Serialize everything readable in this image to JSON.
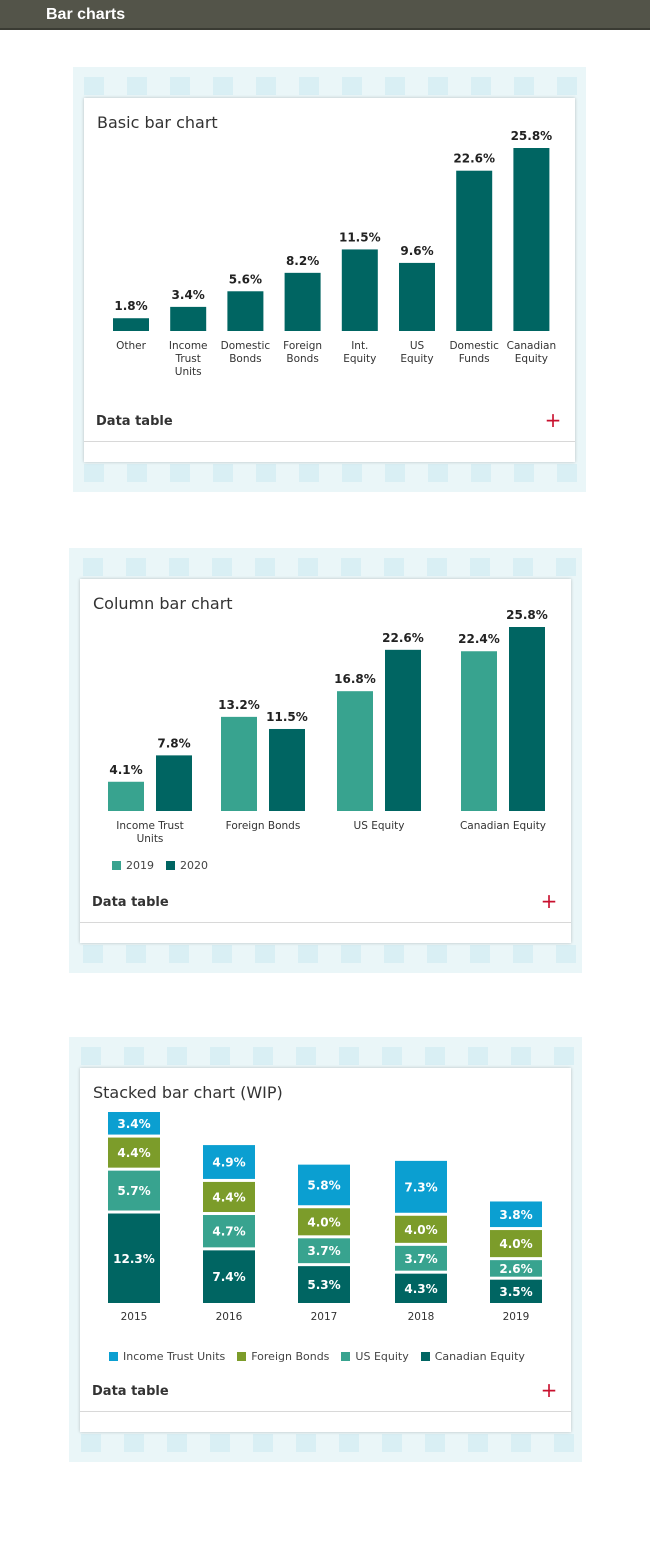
{
  "header": {
    "title": "Bar charts"
  },
  "colors": {
    "dark_teal": "#006562",
    "light_teal": "#38a38f",
    "blue": "#0b9fd1",
    "green": "#7c9c2a",
    "plus_red": "#c8102e"
  },
  "data_table_label": "Data table",
  "plus_icon": "+",
  "chart_data": [
    {
      "type": "bar",
      "title": "Basic bar chart",
      "categories": [
        [
          "Other"
        ],
        [
          "Income",
          "Trust",
          "Units"
        ],
        [
          "Domestic",
          "Bonds"
        ],
        [
          "Foreign",
          "Bonds"
        ],
        [
          "Int.",
          "Equity"
        ],
        [
          "US",
          "Equity"
        ],
        [
          "Domestic",
          "Funds"
        ],
        [
          "Canadian",
          "Equity"
        ]
      ],
      "values": [
        1.8,
        3.4,
        5.6,
        8.2,
        11.5,
        9.6,
        22.6,
        25.8
      ],
      "value_labels": [
        "1.8%",
        "3.4%",
        "5.6%",
        "8.2%",
        "11.5%",
        "9.6%",
        "22.6%",
        "25.8%"
      ],
      "ylim": [
        0,
        25.8
      ]
    },
    {
      "type": "bar",
      "title": "Column bar chart",
      "categories": [
        [
          "Income Trust",
          "Units"
        ],
        [
          "Foreign Bonds"
        ],
        [
          "US Equity"
        ],
        [
          "Canadian Equity"
        ]
      ],
      "series": [
        {
          "name": "2019",
          "color": "#38a38f",
          "values": [
            4.1,
            13.2,
            16.8,
            22.4
          ],
          "value_labels": [
            "4.1%",
            "13.2%",
            "16.8%",
            "22.4%"
          ]
        },
        {
          "name": "2020",
          "color": "#006562",
          "values": [
            7.8,
            11.5,
            22.6,
            25.8
          ],
          "value_labels": [
            "7.8%",
            "11.5%",
            "22.6%",
            "25.8%"
          ]
        }
      ],
      "legend": "bottom-left",
      "ylim": [
        0,
        25.8
      ]
    },
    {
      "type": "bar",
      "title": "Stacked bar chart (WIP)",
      "categories": [
        "2015",
        "2016",
        "2017",
        "2018",
        "2019"
      ],
      "series": [
        {
          "name": "Canadian Equity",
          "color": "#006562",
          "values": [
            12.3,
            7.4,
            5.3,
            4.3,
            3.5
          ],
          "value_labels": [
            "12.3%",
            "7.4%",
            "5.3%",
            "4.3%",
            "3.5%"
          ]
        },
        {
          "name": "US Equity",
          "color": "#38a38f",
          "values": [
            5.7,
            4.7,
            3.7,
            3.7,
            2.6
          ],
          "value_labels": [
            "5.7%",
            "4.7%",
            "3.7%",
            "3.7%",
            "2.6%"
          ]
        },
        {
          "name": "Foreign Bonds",
          "color": "#7c9c2a",
          "values": [
            4.4,
            4.4,
            4.0,
            4.0,
            4.0
          ],
          "value_labels": [
            "4.4%",
            "4.4%",
            "4.0%",
            "4.0%",
            "4.0%"
          ]
        },
        {
          "name": "Income Trust Units",
          "color": "#0b9fd1",
          "values": [
            3.4,
            4.9,
            5.8,
            7.3,
            3.8
          ],
          "value_labels": [
            "3.4%",
            "4.9%",
            "5.8%",
            "7.3%",
            "3.8%"
          ]
        }
      ],
      "legend_order": [
        "Income Trust Units",
        "Foreign Bonds",
        "US Equity",
        "Canadian Equity"
      ],
      "legend": "bottom-left",
      "stacked": true
    }
  ]
}
